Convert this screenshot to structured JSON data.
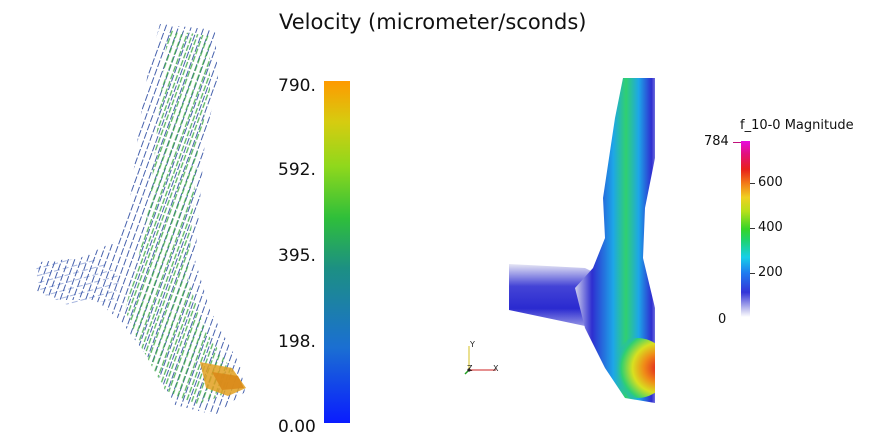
{
  "title": "Velocity (micrometer/sconds)",
  "colorbar_left": {
    "labels": [
      "790.",
      "592.",
      "395.",
      "198.",
      "0.00"
    ],
    "colors": [
      "#0a1cff",
      "#2fbf3a",
      "#ff9a00"
    ]
  },
  "colorbar_right": {
    "title": "f_10-0 Magnitude",
    "max_label": "784",
    "labels": [
      "600",
      "400",
      "200",
      "0"
    ],
    "colors": [
      "#ffffff",
      "#3434d8",
      "#16d0e8",
      "#36d428",
      "#f0d020",
      "#e8201a",
      "#e60ae0"
    ]
  },
  "axes": {
    "y_label": "Y",
    "z_label": "Z",
    "x_label": "X"
  }
}
